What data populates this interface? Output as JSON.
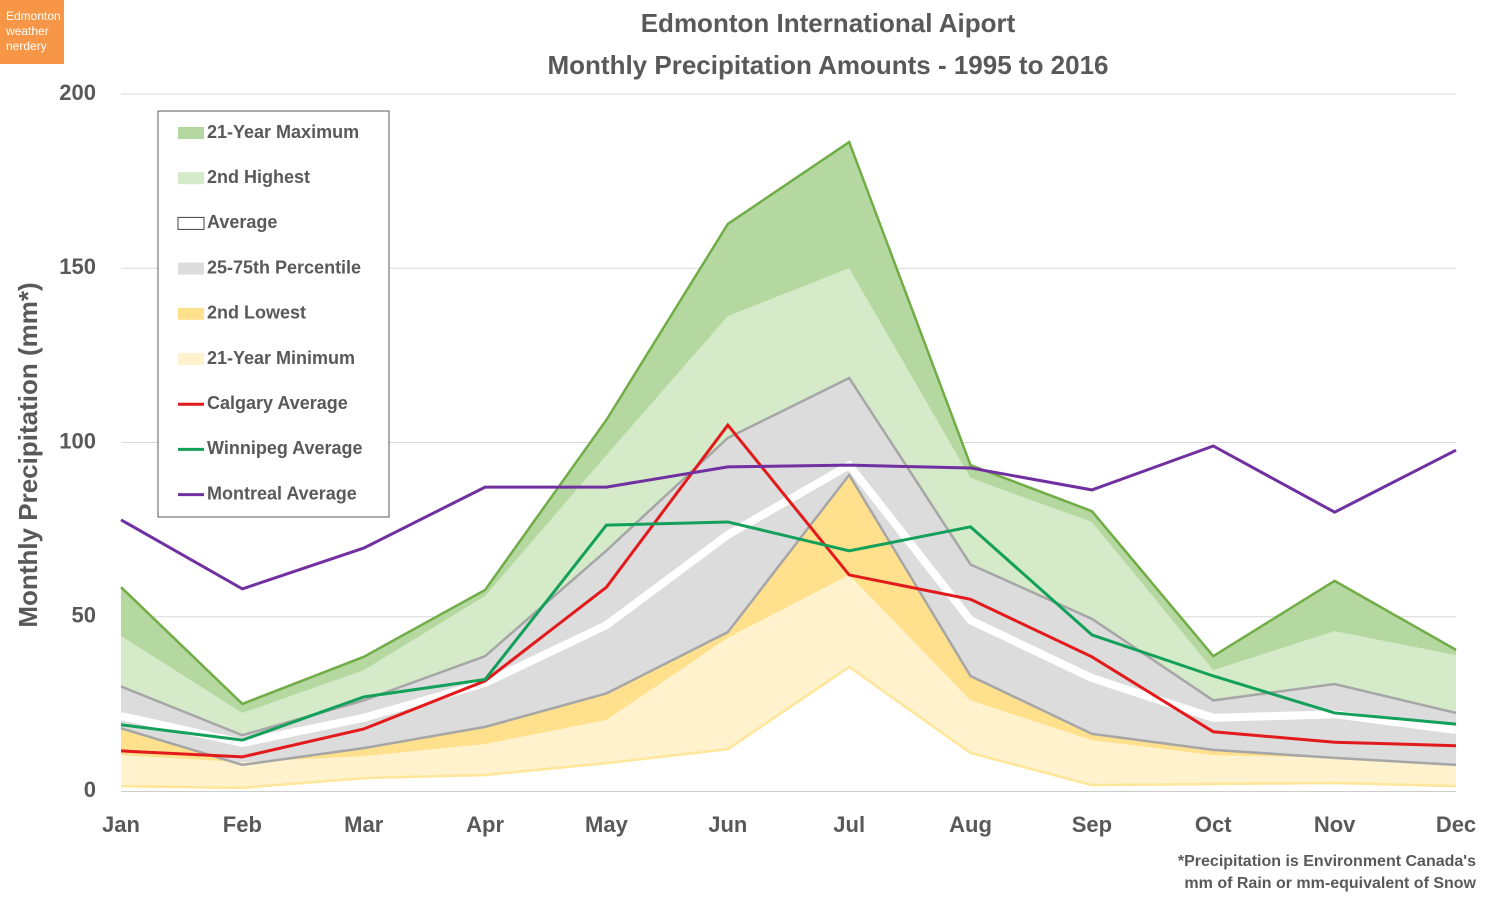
{
  "badge": "Edmonton weather nerdery",
  "chart_data": {
    "type": "area",
    "title": "Edmonton International Aiport",
    "subtitle": "Monthly Precipitation Amounts - 1995 to 2016",
    "y_label": "Monthly Precipitation (mm*)",
    "footnote": [
      "*Precipitation is Environment Canada's",
      "mm of Rain or mm-equivalent of Snow"
    ],
    "categories": [
      "Jan",
      "Feb",
      "Mar",
      "Apr",
      "May",
      "Jun",
      "Jul",
      "Aug",
      "Sep",
      "Oct",
      "Nov",
      "Dec"
    ],
    "ylim": [
      0,
      200
    ],
    "yticks": [
      0,
      50,
      100,
      150,
      200
    ],
    "grid": true,
    "series": [
      {
        "name": "21-Year Maximum",
        "kind": "band",
        "color": "#b5d7a0",
        "edge": "#70ad47",
        "values": [
          58.5,
          25,
          38.5,
          57.7,
          106.5,
          162.7,
          186.2,
          93.5,
          80.3,
          38.7,
          60.3,
          40.5
        ]
      },
      {
        "name": "2nd Highest",
        "kind": "band",
        "color": "#d5eac8",
        "values": [
          44.5,
          22.4,
          34.7,
          56,
          96.4,
          136.3,
          150,
          89.8,
          77.2,
          34.7,
          45.9,
          39
        ]
      },
      {
        "name": "Average",
        "kind": "line",
        "color": "#ffffff",
        "values": [
          21.5,
          13.8,
          21,
          31,
          47.6,
          73.5,
          93.5,
          49,
          32.4,
          21,
          22,
          17.5
        ]
      },
      {
        "name": "25-75th Percentile",
        "kind": "band",
        "color": "#dcdcdc",
        "edge": "#a6a6a6",
        "values": [
          30,
          16,
          26,
          38.7,
          69,
          101.3,
          118.5,
          65,
          49.4,
          26,
          30.7,
          22.4
        ],
        "low": [
          18,
          7.5,
          12.3,
          18.4,
          28,
          45.6,
          90.7,
          33,
          16.4,
          11.8,
          9.5,
          7.5
        ]
      },
      {
        "name": "2nd Lowest",
        "kind": "band",
        "color": "#ffe08c",
        "values": [
          10.3,
          8.3,
          10,
          13.5,
          20.4,
          44,
          62,
          26,
          14.6,
          10.3,
          9.5,
          7.2
        ]
      },
      {
        "name": "21-Year Minimum",
        "kind": "band",
        "color": "#fff2cc",
        "edge": "#ffe699",
        "values": [
          1.4,
          0.9,
          3.7,
          4.6,
          8,
          12,
          35.6,
          10.9,
          1.7,
          2,
          2.3,
          1.4
        ]
      },
      {
        "name": "Calgary Average",
        "kind": "line",
        "color": "#e31a1c",
        "values": [
          11.5,
          9.8,
          17.8,
          31.6,
          58.5,
          105,
          62,
          55,
          38.5,
          17,
          14,
          13
        ]
      },
      {
        "name": "Winnipeg Average",
        "kind": "line",
        "color": "#13a05a",
        "values": [
          19,
          14.6,
          27,
          32,
          76.3,
          77.2,
          68.9,
          75.8,
          44.8,
          33,
          22.4,
          19.2
        ]
      },
      {
        "name": "Montreal Average",
        "kind": "line",
        "color": "#7030a0",
        "values": [
          77.8,
          58,
          69.7,
          87.2,
          87.2,
          93,
          93.5,
          92.7,
          86.4,
          99,
          80,
          97.8
        ]
      }
    ]
  }
}
